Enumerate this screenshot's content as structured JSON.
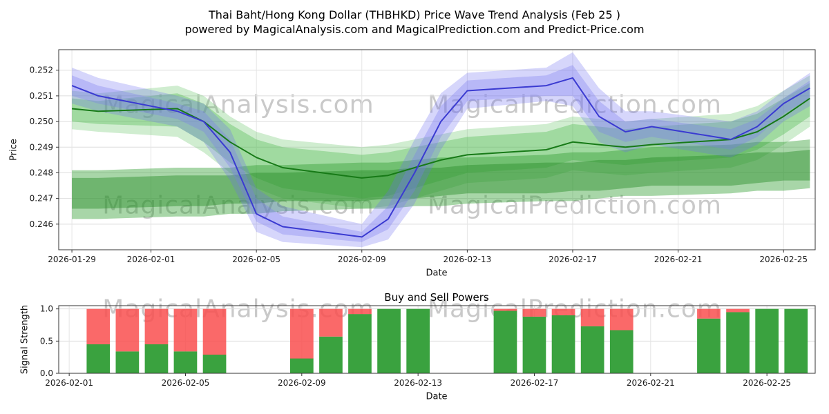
{
  "header": {
    "title_line1": "Thai Baht/Hong Kong Dollar (THBHKD) Price Wave Trend Analysis (Feb 25 )",
    "title_line2": "powered by MagicalAnalysis.com and MagicalPrediction.com and Predict-Price.com"
  },
  "watermarks": {
    "text_left": "MagicalAnalysis.com",
    "text_right": "MagicalPrediction.com",
    "color": "#c9c9c9"
  },
  "chart_data": [
    {
      "name": "price-wave-chart",
      "type": "area",
      "title": "",
      "xlabel": "Date",
      "ylabel": "Price",
      "xlim": [
        -0.5,
        28.2
      ],
      "ylim": [
        0.245,
        0.2528
      ],
      "plot": {
        "l": 85,
        "t": 72,
        "r": 1180,
        "b": 362
      },
      "grid": true,
      "x": [
        0,
        1,
        4,
        5,
        6,
        7,
        8,
        11,
        12,
        13,
        14,
        15,
        18,
        19,
        20,
        21,
        22,
        25,
        26,
        27,
        28
      ],
      "dates": [
        "2026-01-29",
        "2026-01-30",
        "2026-02-02",
        "2026-02-03",
        "2026-02-04",
        "2026-02-05",
        "2026-02-06",
        "2026-02-09",
        "2026-02-10",
        "2026-02-11",
        "2026-02-12",
        "2026-02-13",
        "2026-02-16",
        "2026-02-17",
        "2026-02-18",
        "2026-02-19",
        "2026-02-20",
        "2026-02-23",
        "2026-02-24",
        "2026-02-25",
        "2026-02-26"
      ],
      "xticks": [
        {
          "v": 0,
          "label": "2026-01-29"
        },
        {
          "v": 3,
          "label": "2026-02-01"
        },
        {
          "v": 7,
          "label": "2026-02-05"
        },
        {
          "v": 11,
          "label": "2026-02-09"
        },
        {
          "v": 15,
          "label": "2026-02-13"
        },
        {
          "v": 19,
          "label": "2026-02-17"
        },
        {
          "v": 23,
          "label": "2026-02-21"
        },
        {
          "v": 27,
          "label": "2026-02-25"
        }
      ],
      "yticks": [
        {
          "v": 0.246,
          "label": "0.246"
        },
        {
          "v": 0.247,
          "label": "0.247"
        },
        {
          "v": 0.248,
          "label": "0.248"
        },
        {
          "v": 0.249,
          "label": "0.249"
        },
        {
          "v": 0.25,
          "label": "0.250"
        },
        {
          "v": 0.251,
          "label": "0.251"
        },
        {
          "v": 0.252,
          "label": "0.252"
        }
      ],
      "bands": [
        {
          "name": "green-upper-band-outer",
          "color": "#63c463",
          "alpha": 0.3,
          "upper": [
            0.2512,
            0.2511,
            0.2514,
            0.251,
            0.2502,
            0.2496,
            0.2493,
            0.249,
            0.2491,
            0.2493,
            0.2495,
            0.2497,
            0.2499,
            0.2502,
            0.2501,
            0.25,
            0.2501,
            0.2503,
            0.2506,
            0.2512,
            0.2518
          ],
          "lower": [
            0.2497,
            0.2496,
            0.2494,
            0.2488,
            0.248,
            0.2474,
            0.247,
            0.2466,
            0.2467,
            0.247,
            0.2473,
            0.2476,
            0.2478,
            0.2481,
            0.248,
            0.2479,
            0.248,
            0.2482,
            0.2485,
            0.2491,
            0.2498
          ]
        },
        {
          "name": "green-upper-band-inner",
          "color": "#49b649",
          "alpha": 0.35,
          "upper": [
            0.2509,
            0.2508,
            0.2511,
            0.2507,
            0.2499,
            0.2493,
            0.249,
            0.2487,
            0.2488,
            0.249,
            0.2492,
            0.2494,
            0.2496,
            0.2499,
            0.2498,
            0.2497,
            0.2498,
            0.25,
            0.2503,
            0.2509,
            0.2515
          ],
          "lower": [
            0.25,
            0.2499,
            0.2498,
            0.2492,
            0.2484,
            0.2478,
            0.2474,
            0.247,
            0.2471,
            0.2474,
            0.2477,
            0.248,
            0.2482,
            0.2485,
            0.2484,
            0.2483,
            0.2484,
            0.2486,
            0.2489,
            0.2495,
            0.2502
          ]
        },
        {
          "name": "green-lower-band-outer",
          "color": "#2f9e2f",
          "alpha": 0.42,
          "upper": [
            0.2481,
            0.2481,
            0.2482,
            0.2482,
            0.2482,
            0.2483,
            0.2483,
            0.2484,
            0.2484,
            0.2485,
            0.2486,
            0.2486,
            0.2487,
            0.2488,
            0.2488,
            0.2489,
            0.249,
            0.2491,
            0.2492,
            0.2492,
            0.2493
          ],
          "lower": [
            0.2462,
            0.2462,
            0.2463,
            0.2463,
            0.2464,
            0.2464,
            0.2465,
            0.2466,
            0.2466,
            0.2467,
            0.2467,
            0.2468,
            0.2469,
            0.2469,
            0.247,
            0.2471,
            0.2471,
            0.2472,
            0.2473,
            0.2473,
            0.2474
          ]
        },
        {
          "name": "green-lower-band-inner",
          "color": "#2a8f2a",
          "alpha": 0.45,
          "upper": [
            0.2478,
            0.2478,
            0.2479,
            0.2479,
            0.2479,
            0.248,
            0.248,
            0.2481,
            0.2481,
            0.2482,
            0.2482,
            0.2483,
            0.2484,
            0.2484,
            0.2485,
            0.2485,
            0.2486,
            0.2487,
            0.2488,
            0.2488,
            0.2489
          ],
          "lower": [
            0.2466,
            0.2466,
            0.2467,
            0.2467,
            0.2468,
            0.2468,
            0.2469,
            0.2469,
            0.247,
            0.247,
            0.2471,
            0.2472,
            0.2472,
            0.2473,
            0.2473,
            0.2474,
            0.2475,
            0.2475,
            0.2476,
            0.2477,
            0.2477
          ]
        },
        {
          "name": "blue-band-outer",
          "color": "#6b6bf2",
          "alpha": 0.28,
          "upper": [
            0.2521,
            0.2517,
            0.251,
            0.2507,
            0.2497,
            0.2474,
            0.2467,
            0.246,
            0.2473,
            0.2493,
            0.2511,
            0.2519,
            0.2521,
            0.2527,
            0.2513,
            0.2504,
            0.2504,
            0.25,
            0.2504,
            0.2512,
            0.2519
          ],
          "lower": [
            0.2507,
            0.2504,
            0.2498,
            0.2492,
            0.2477,
            0.2457,
            0.2453,
            0.2451,
            0.2454,
            0.2468,
            0.2489,
            0.2505,
            0.2508,
            0.2506,
            0.2492,
            0.2488,
            0.2491,
            0.2486,
            0.2491,
            0.25,
            0.2506
          ]
        },
        {
          "name": "blue-band-inner",
          "color": "#7a7af0",
          "alpha": 0.32,
          "upper": [
            0.2518,
            0.2514,
            0.2507,
            0.2504,
            0.2493,
            0.247,
            0.2463,
            0.2457,
            0.2467,
            0.2487,
            0.2506,
            0.2516,
            0.2518,
            0.2522,
            0.2508,
            0.25,
            0.2501,
            0.2497,
            0.2501,
            0.2509,
            0.2516
          ],
          "lower": [
            0.251,
            0.2507,
            0.2501,
            0.2496,
            0.2482,
            0.2461,
            0.2456,
            0.2453,
            0.2458,
            0.2473,
            0.2494,
            0.2508,
            0.251,
            0.251,
            0.2496,
            0.2492,
            0.2494,
            0.2489,
            0.2494,
            0.2503,
            0.2509
          ]
        }
      ],
      "lines": [
        {
          "name": "green-trend-line",
          "color": "#177a17",
          "width": 2,
          "values": [
            0.2505,
            0.2504,
            0.2505,
            0.25,
            0.2492,
            0.2486,
            0.2482,
            0.2478,
            0.2479,
            0.2482,
            0.2485,
            0.2487,
            0.2489,
            0.2492,
            0.2491,
            0.249,
            0.2491,
            0.2493,
            0.2496,
            0.2502,
            0.2509
          ]
        },
        {
          "name": "blue-trend-line",
          "color": "#3a3ad1",
          "width": 2,
          "values": [
            0.2514,
            0.251,
            0.2504,
            0.25,
            0.2488,
            0.2464,
            0.2459,
            0.2455,
            0.2462,
            0.248,
            0.25,
            0.2512,
            0.2514,
            0.2517,
            0.2502,
            0.2496,
            0.2498,
            0.2493,
            0.2498,
            0.2507,
            0.2513
          ]
        }
      ]
    },
    {
      "name": "buy-sell-powers-chart",
      "type": "bar",
      "title": "Buy and Sell Powers",
      "xlabel": "Date",
      "ylabel": "Signal Strength",
      "xlim": [
        -0.36,
        25.66
      ],
      "ylim": [
        0,
        1.05
      ],
      "plot": {
        "l": 85,
        "t": 443,
        "r": 1180,
        "b": 541
      },
      "grid": true,
      "xticks": [
        {
          "v": 0,
          "label": "2026-02-01"
        },
        {
          "v": 4,
          "label": "2026-02-05"
        },
        {
          "v": 8,
          "label": "2026-02-09"
        },
        {
          "v": 12,
          "label": "2026-02-13"
        },
        {
          "v": 16,
          "label": "2026-02-17"
        },
        {
          "v": 20,
          "label": "2026-02-21"
        },
        {
          "v": 24,
          "label": "2026-02-25"
        }
      ],
      "yticks": [
        {
          "v": 0,
          "label": "0.0"
        },
        {
          "v": 0.5,
          "label": "0.5"
        },
        {
          "v": 1,
          "label": "1.0"
        }
      ],
      "bars": {
        "width": 0.8,
        "buy_color": "#3aa23f",
        "sell_color": "#f94f4f",
        "days": [
          1,
          2,
          3,
          4,
          5,
          8,
          9,
          10,
          11,
          12,
          15,
          16,
          17,
          18,
          19,
          22,
          23,
          24,
          25
        ],
        "dates": [
          "2026-02-02",
          "2026-02-03",
          "2026-02-04",
          "2026-02-05",
          "2026-02-06",
          "2026-02-09",
          "2026-02-10",
          "2026-02-11",
          "2026-02-12",
          "2026-02-13",
          "2026-02-16",
          "2026-02-17",
          "2026-02-18",
          "2026-02-19",
          "2026-02-20",
          "2026-02-23",
          "2026-02-24",
          "2026-02-25",
          "2026-02-26"
        ],
        "buy": [
          0.45,
          0.34,
          0.45,
          0.34,
          0.29,
          0.23,
          0.57,
          0.92,
          1.0,
          1.0,
          0.97,
          0.88,
          0.9,
          0.73,
          0.67,
          0.85,
          0.95,
          1.0,
          1.0
        ],
        "sell": [
          0.55,
          0.66,
          0.55,
          0.66,
          0.71,
          0.77,
          0.43,
          0.08,
          0.0,
          0.0,
          0.03,
          0.12,
          0.1,
          0.27,
          0.33,
          0.15,
          0.05,
          0.0,
          0.0
        ]
      }
    }
  ]
}
